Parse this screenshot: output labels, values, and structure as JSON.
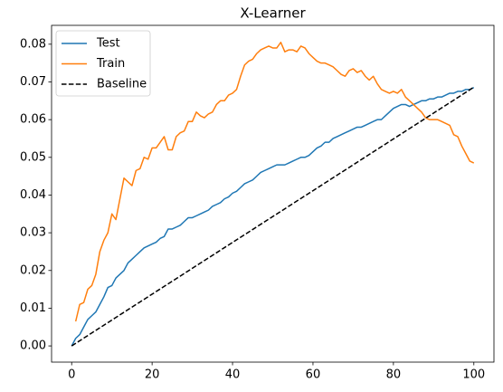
{
  "chart_data": {
    "type": "line",
    "title": "X-Learner",
    "x": [
      0,
      1,
      2,
      3,
      4,
      5,
      6,
      7,
      8,
      9,
      10,
      11,
      12,
      13,
      14,
      15,
      16,
      17,
      18,
      19,
      20,
      21,
      22,
      23,
      24,
      25,
      26,
      27,
      28,
      29,
      30,
      31,
      32,
      33,
      34,
      35,
      36,
      37,
      38,
      39,
      40,
      41,
      42,
      43,
      44,
      45,
      46,
      47,
      48,
      49,
      50,
      51,
      52,
      53,
      54,
      55,
      56,
      57,
      58,
      59,
      60,
      61,
      62,
      63,
      64,
      65,
      66,
      67,
      68,
      69,
      70,
      71,
      72,
      73,
      74,
      75,
      76,
      77,
      78,
      79,
      80,
      81,
      82,
      83,
      84,
      85,
      86,
      87,
      88,
      89,
      90,
      91,
      92,
      93,
      94,
      95,
      96,
      97,
      98,
      99,
      100
    ],
    "series": [
      {
        "name": "Test",
        "color": "#1f77b4",
        "linestyle": "solid",
        "values": [
          0,
          0.002,
          0.003,
          0.005,
          0.007,
          0.008,
          0.009,
          0.011,
          0.013,
          0.0155,
          0.016,
          0.018,
          0.019,
          0.02,
          0.022,
          0.023,
          0.024,
          0.025,
          0.026,
          0.0265,
          0.027,
          0.0275,
          0.0285,
          0.029,
          0.031,
          0.031,
          0.0315,
          0.032,
          0.033,
          0.034,
          0.034,
          0.0345,
          0.035,
          0.0355,
          0.036,
          0.037,
          0.0375,
          0.038,
          0.039,
          0.0395,
          0.0405,
          0.041,
          0.042,
          0.043,
          0.0435,
          0.044,
          0.045,
          0.046,
          0.0465,
          0.047,
          0.0475,
          0.048,
          0.048,
          0.048,
          0.0485,
          0.049,
          0.0495,
          0.05,
          0.05,
          0.0505,
          0.0515,
          0.0525,
          0.053,
          0.054,
          0.054,
          0.055,
          0.0555,
          0.056,
          0.0565,
          0.057,
          0.0575,
          0.058,
          0.058,
          0.0585,
          0.059,
          0.0595,
          0.06,
          0.06,
          0.061,
          0.062,
          0.063,
          0.0635,
          0.064,
          0.064,
          0.0635,
          0.064,
          0.0645,
          0.065,
          0.065,
          0.0655,
          0.0655,
          0.066,
          0.066,
          0.0665,
          0.067,
          0.067,
          0.0675,
          0.0675,
          0.068,
          0.068,
          0.0685
        ]
      },
      {
        "name": "Train",
        "color": "#ff7f0e",
        "linestyle": "solid",
        "values": [
          null,
          0.0065,
          0.011,
          0.0115,
          0.015,
          0.016,
          0.019,
          0.025,
          0.028,
          0.03,
          0.035,
          0.0335,
          0.039,
          0.0445,
          0.0435,
          0.0425,
          0.0465,
          0.047,
          0.05,
          0.0495,
          0.0525,
          0.0525,
          0.054,
          0.0555,
          0.052,
          0.052,
          0.0555,
          0.0565,
          0.057,
          0.0595,
          0.0595,
          0.062,
          0.061,
          0.0605,
          0.0615,
          0.062,
          0.064,
          0.065,
          0.065,
          0.0665,
          0.067,
          0.068,
          0.0715,
          0.0745,
          0.0755,
          0.076,
          0.0775,
          0.0785,
          0.079,
          0.0795,
          0.079,
          0.079,
          0.0805,
          0.078,
          0.0785,
          0.0785,
          0.078,
          0.0795,
          0.079,
          0.0775,
          0.0765,
          0.0755,
          0.075,
          0.075,
          0.0745,
          0.074,
          0.073,
          0.072,
          0.0715,
          0.073,
          0.0735,
          0.0725,
          0.073,
          0.0715,
          0.0705,
          0.0715,
          0.0695,
          0.068,
          0.0675,
          0.067,
          0.0675,
          0.067,
          0.068,
          0.066,
          0.065,
          0.064,
          0.063,
          0.062,
          0.0605,
          0.06,
          0.06,
          0.06,
          0.0595,
          0.059,
          0.0585,
          0.056,
          0.0555,
          0.053,
          0.051,
          0.049,
          0.0485
        ]
      },
      {
        "name": "Baseline",
        "color": "#000000",
        "linestyle": "dashed",
        "x": [
          0,
          100
        ],
        "values": [
          0,
          0.0686
        ]
      }
    ],
    "xlim": [
      -5,
      105
    ],
    "xticks": [
      0,
      20,
      40,
      60,
      80,
      100
    ],
    "ylim": [
      -0.0043,
      0.085
    ],
    "yticks": [
      {
        "value": 0,
        "label": "0.00"
      },
      {
        "value": 0.01,
        "label": "0.01"
      },
      {
        "value": 0.02,
        "label": "0.02"
      },
      {
        "value": 0.03,
        "label": "0.03"
      },
      {
        "value": 0.04,
        "label": "0.04"
      },
      {
        "value": 0.05,
        "label": "0.05"
      },
      {
        "value": 0.06,
        "label": "0.06"
      },
      {
        "value": 0.07,
        "label": "0.07"
      },
      {
        "value": 0.08,
        "label": "0.08"
      }
    ],
    "legend": "upper left"
  }
}
